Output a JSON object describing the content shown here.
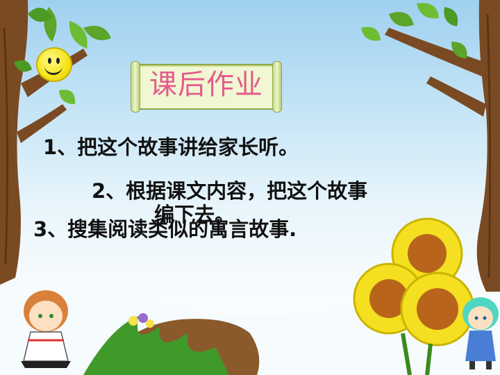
{
  "title": "课后作业",
  "assignments": {
    "item1": "1、把这个故事讲给家长听。",
    "item2_line1": "2、根据课文内容，把这个故事",
    "item2_line2": "编下去。",
    "item3": "3、搜集阅读类似的寓言故事."
  },
  "decorations": {
    "smiley": "smiley-face-icon",
    "left_tree": "tree-illustration",
    "right_tree": "tree-illustration",
    "flowers": "sunflower-illustration",
    "girl_left": "cartoon-girl-illustration",
    "girl_right": "cartoon-girl-illustration"
  },
  "colors": {
    "title_text": "#e55a8c",
    "scroll_paper": "#f1f7d2",
    "body_text": "#111111"
  }
}
